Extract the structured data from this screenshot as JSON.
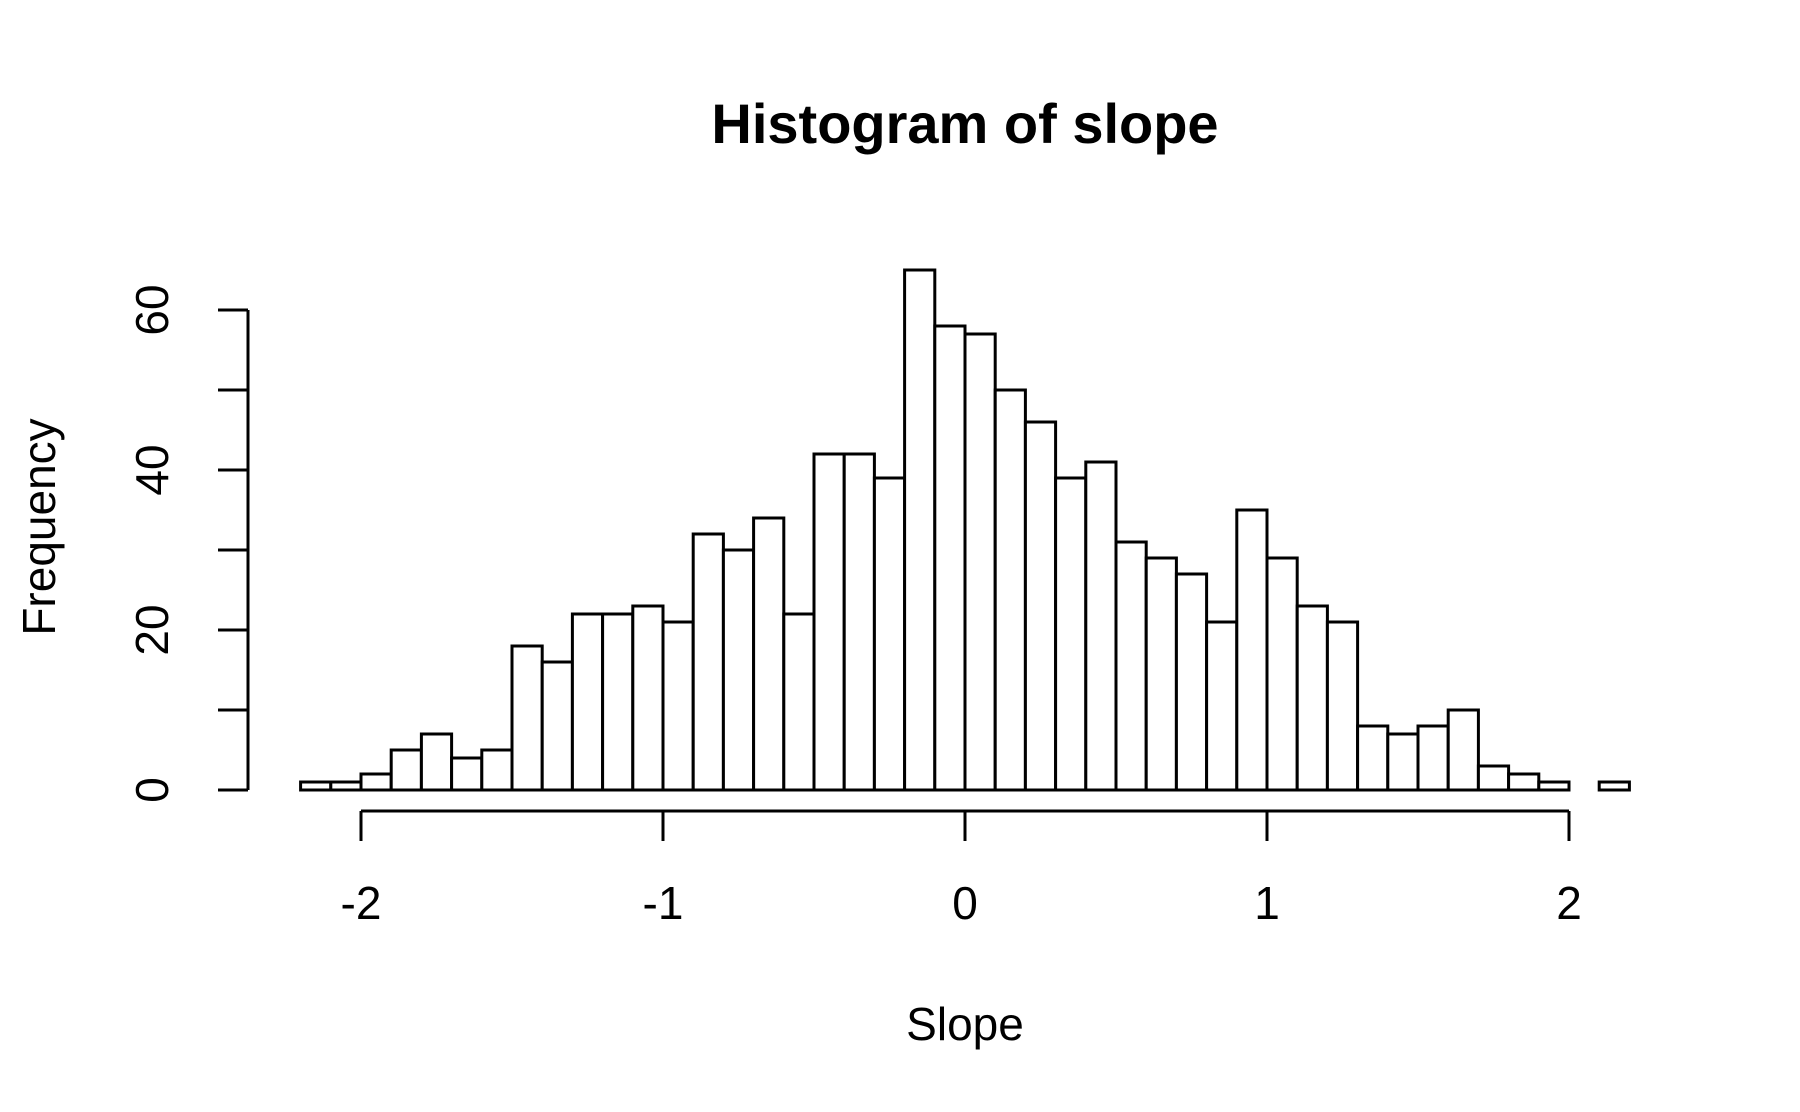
{
  "chart_data": {
    "type": "bar",
    "title": "Histogram of slope",
    "xlabel": "Slope",
    "ylabel": "Frequency",
    "bin_width": 0.1,
    "bin_start": -2.2,
    "values": [
      1,
      1,
      2,
      5,
      7,
      4,
      5,
      18,
      16,
      22,
      22,
      23,
      21,
      32,
      30,
      34,
      22,
      42,
      42,
      39,
      65,
      58,
      57,
      50,
      46,
      39,
      41,
      31,
      29,
      27,
      21,
      35,
      29,
      23,
      21,
      8,
      7,
      8,
      10,
      3,
      2,
      1,
      0,
      1
    ],
    "xlim": [
      -2.2,
      2.2
    ],
    "ylim": [
      0,
      65
    ],
    "x_ticks": [
      -2,
      -1,
      0,
      1,
      2
    ],
    "x_tick_labels": [
      "-2",
      "-1",
      "0",
      "1",
      "2"
    ],
    "y_ticks": [
      0,
      10,
      20,
      30,
      40,
      50,
      60
    ],
    "y_tick_labels": [
      "0",
      "",
      "20",
      "",
      "40",
      "",
      "60"
    ],
    "grid": false,
    "legend": "none",
    "colors": {
      "bar_fill": "#ffffff",
      "bar_stroke": "#000000"
    }
  }
}
